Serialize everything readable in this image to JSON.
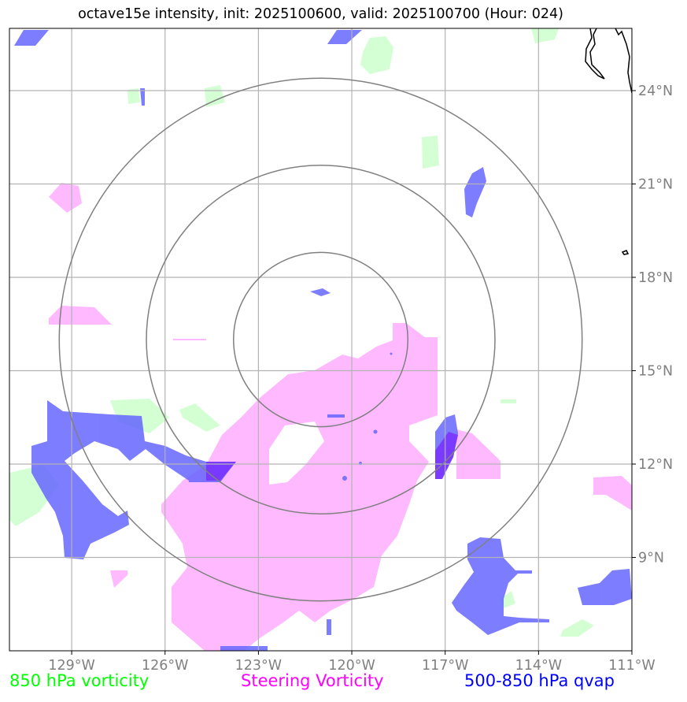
{
  "title": "octave15e intensity, init: 2025100600, valid: 2025100700 (Hour: 024)",
  "map": {
    "lon_range": [
      -131.0,
      -111.0
    ],
    "lat_range": [
      6.0,
      26.0
    ],
    "center": {
      "lon": -121.0,
      "lat": 16.0
    },
    "ring_radii_deg": [
      2.8,
      5.6,
      8.4
    ],
    "meridians": [
      -129,
      -126,
      -123,
      -120,
      -117,
      -114,
      -111
    ],
    "parallels": [
      9,
      12,
      15,
      18,
      21,
      24
    ],
    "lon_labels": [
      "129°W",
      "126°W",
      "123°W",
      "120°W",
      "117°W",
      "114°W",
      "111°W"
    ],
    "lat_labels": [
      "9°N",
      "12°N",
      "15°N",
      "18°N",
      "21°N",
      "24°N"
    ],
    "grid": true,
    "grid_color": "#b3b3b3",
    "ring_color": "#808080",
    "coastline_color": "#000000"
  },
  "layers": [
    {
      "name": "850 hPa vorticity",
      "color": "#00ff00",
      "fill": "#ccffcc"
    },
    {
      "name": "Steering Vorticity",
      "color": "#ff00ff",
      "fill": "#ffb3ff"
    },
    {
      "name": "500-850 hPa qvap",
      "color": "#0000ff",
      "fill": "#6666ff"
    }
  ]
}
